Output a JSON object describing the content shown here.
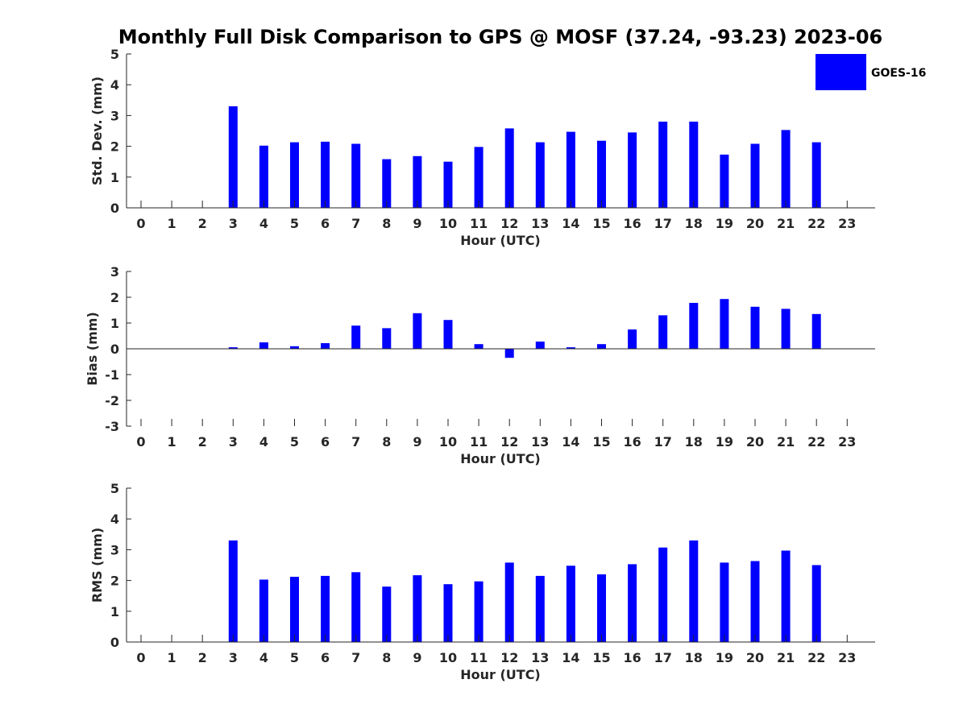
{
  "title": "Monthly Full Disk Comparison to GPS @ MOSF (37.24, -93.23) 2023-06",
  "legend": {
    "label": "GOES-16",
    "color": "#0000ff",
    "placement": "top-right"
  },
  "chart_data": [
    {
      "type": "bar",
      "xlabel": "Hour (UTC)",
      "ylabel": "Std. Dev. (mm)",
      "ylim": [
        0,
        5
      ],
      "yticks": [
        "0",
        "1",
        "2",
        "3",
        "4",
        "5"
      ],
      "categories": [
        "0",
        "1",
        "2",
        "3",
        "4",
        "5",
        "6",
        "7",
        "8",
        "9",
        "10",
        "11",
        "12",
        "13",
        "14",
        "15",
        "16",
        "17",
        "18",
        "19",
        "20",
        "21",
        "22",
        "23"
      ],
      "series": [
        {
          "name": "GOES-16",
          "color": "#0000ff",
          "values": [
            null,
            null,
            null,
            3.3,
            2.02,
            2.13,
            2.15,
            2.08,
            1.58,
            1.68,
            1.5,
            1.98,
            2.58,
            2.13,
            2.47,
            2.18,
            2.45,
            2.8,
            2.8,
            1.73,
            2.08,
            2.53,
            2.13,
            null
          ]
        }
      ]
    },
    {
      "type": "bar",
      "xlabel": "Hour (UTC)",
      "ylabel": "Bias (mm)",
      "ylim": [
        -3,
        3
      ],
      "yticks": [
        "-3",
        "-2",
        "-1",
        "0",
        "1",
        "2",
        "3"
      ],
      "categories": [
        "0",
        "1",
        "2",
        "3",
        "4",
        "5",
        "6",
        "7",
        "8",
        "9",
        "10",
        "11",
        "12",
        "13",
        "14",
        "15",
        "16",
        "17",
        "18",
        "19",
        "20",
        "21",
        "22",
        "23"
      ],
      "series": [
        {
          "name": "GOES-16",
          "color": "#0000ff",
          "values": [
            null,
            null,
            null,
            0.06,
            0.25,
            0.1,
            0.22,
            0.9,
            0.8,
            1.38,
            1.12,
            0.18,
            -0.35,
            0.28,
            0.06,
            0.18,
            0.75,
            1.3,
            1.78,
            1.93,
            1.63,
            1.55,
            1.35,
            null
          ]
        }
      ]
    },
    {
      "type": "bar",
      "xlabel": "Hour (UTC)",
      "ylabel": "RMS (mm)",
      "ylim": [
        0,
        5
      ],
      "yticks": [
        "0",
        "1",
        "2",
        "3",
        "4",
        "5"
      ],
      "categories": [
        "0",
        "1",
        "2",
        "3",
        "4",
        "5",
        "6",
        "7",
        "8",
        "9",
        "10",
        "11",
        "12",
        "13",
        "14",
        "15",
        "16",
        "17",
        "18",
        "19",
        "20",
        "21",
        "22",
        "23"
      ],
      "series": [
        {
          "name": "GOES-16",
          "color": "#0000ff",
          "values": [
            null,
            null,
            null,
            3.3,
            2.03,
            2.12,
            2.15,
            2.27,
            1.8,
            2.17,
            1.88,
            1.97,
            2.58,
            2.15,
            2.48,
            2.2,
            2.53,
            3.07,
            3.3,
            2.58,
            2.63,
            2.97,
            2.5,
            null
          ]
        }
      ]
    }
  ]
}
